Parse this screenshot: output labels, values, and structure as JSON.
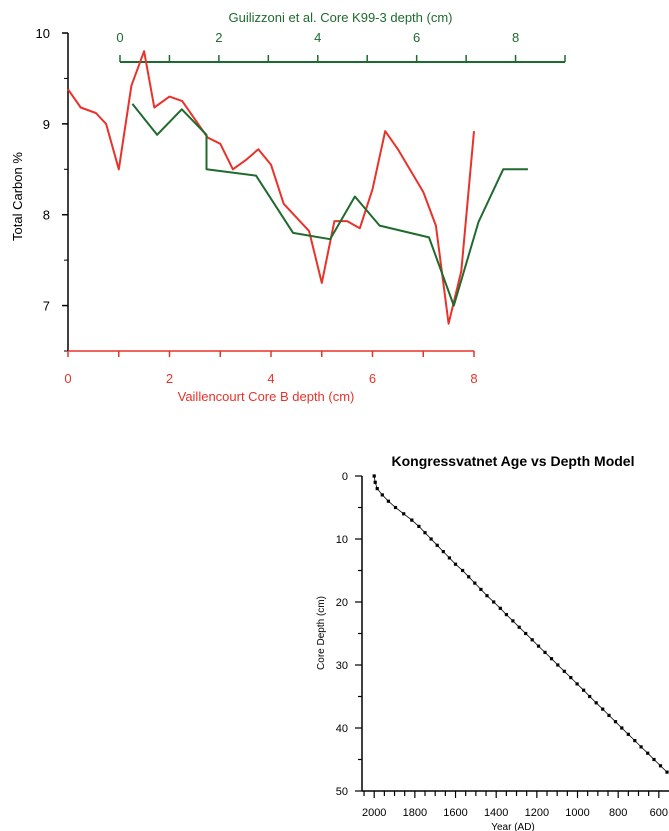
{
  "colors": {
    "red": "#e8322a",
    "green": "#1f6a2e",
    "black": "#000000"
  },
  "chart_data": [
    {
      "type": "line",
      "title": "",
      "ylabel": "Total Carbon %",
      "ylim": [
        6.5,
        10
      ],
      "yticks": [
        7,
        8,
        9,
        10
      ],
      "x_bottom": {
        "label": "Vaillencourt Core B depth (cm)",
        "lim": [
          0,
          8
        ],
        "ticks": [
          0,
          2,
          4,
          6,
          8
        ]
      },
      "x_top": {
        "label": "Guilizzoni et al. Core K99-3 depth (cm)",
        "lim": [
          0,
          9
        ],
        "ticks": [
          0,
          2,
          4,
          6,
          8
        ]
      },
      "series": [
        {
          "axis": "bottom",
          "color": "#e8322a",
          "x": [
            0,
            0.25,
            0.55,
            0.75,
            1.0,
            1.25,
            1.5,
            1.7,
            2.0,
            2.25,
            2.75,
            3.0,
            3.25,
            3.5,
            3.75,
            4.0,
            4.25,
            4.75,
            5.0,
            5.25,
            5.5,
            5.75,
            6.0,
            6.25,
            6.5,
            7.0,
            7.25,
            7.5,
            7.75,
            8.0
          ],
          "y": [
            9.38,
            9.18,
            9.12,
            9.0,
            8.5,
            9.42,
            9.8,
            9.18,
            9.3,
            9.25,
            8.85,
            8.78,
            8.5,
            8.6,
            8.72,
            8.55,
            8.12,
            7.82,
            7.25,
            7.93,
            7.93,
            7.85,
            8.28,
            8.92,
            8.72,
            8.25,
            7.88,
            6.8,
            7.38,
            8.92
          ]
        },
        {
          "axis": "top",
          "color": "#1f6a2e",
          "x": [
            0.25,
            0.75,
            1.25,
            1.75,
            1.75,
            2.75,
            3.5,
            4.25,
            4.75,
            5.25,
            6.25,
            6.75,
            7.25,
            7.75,
            8.25
          ],
          "y": [
            9.22,
            8.88,
            9.16,
            8.88,
            8.5,
            8.43,
            7.8,
            7.73,
            8.2,
            7.88,
            7.75,
            7.0,
            7.92,
            8.5,
            8.5
          ]
        }
      ]
    },
    {
      "type": "scatter",
      "title": "Kongressvatnet Age vs Depth Model",
      "xlabel": "Year (AD)",
      "ylabel": "Core Depth (cm)",
      "xlim": [
        2060,
        550
      ],
      "ylim": [
        0,
        50
      ],
      "xticks": [
        2000,
        1800,
        1600,
        1400,
        1200,
        1000,
        800,
        600
      ],
      "yticks": [
        0,
        10,
        20,
        30,
        40,
        50
      ],
      "curve": [
        [
          2000,
          0
        ],
        [
          1995,
          1
        ],
        [
          1985,
          2
        ],
        [
          1960,
          3
        ],
        [
          1930,
          4
        ],
        [
          1895,
          5
        ],
        [
          1855,
          6
        ],
        [
          1815,
          7
        ],
        [
          1780,
          8
        ],
        [
          1750,
          9
        ],
        [
          1720,
          10
        ],
        [
          1690,
          11
        ],
        [
          1660,
          12
        ],
        [
          1630,
          13
        ],
        [
          1600,
          14
        ],
        [
          1565,
          15
        ],
        [
          1535,
          16
        ],
        [
          1505,
          17
        ],
        [
          1475,
          18
        ],
        [
          1445,
          19
        ],
        [
          1412,
          20
        ],
        [
          1380,
          21
        ],
        [
          1350,
          22
        ],
        [
          1318,
          23
        ],
        [
          1287,
          24
        ],
        [
          1255,
          25
        ],
        [
          1223,
          26
        ],
        [
          1192,
          27
        ],
        [
          1160,
          28
        ],
        [
          1128,
          29
        ],
        [
          1097,
          30
        ],
        [
          1065,
          31
        ],
        [
          1033,
          32
        ],
        [
          1002,
          33
        ],
        [
          970,
          34
        ],
        [
          940,
          35
        ],
        [
          908,
          36
        ],
        [
          876,
          37
        ],
        [
          845,
          38
        ],
        [
          813,
          39
        ],
        [
          782,
          40
        ],
        [
          750,
          41
        ],
        [
          718,
          42
        ],
        [
          687,
          43
        ],
        [
          655,
          44
        ],
        [
          624,
          45
        ],
        [
          592,
          46
        ],
        [
          560,
          47
        ]
      ]
    }
  ]
}
